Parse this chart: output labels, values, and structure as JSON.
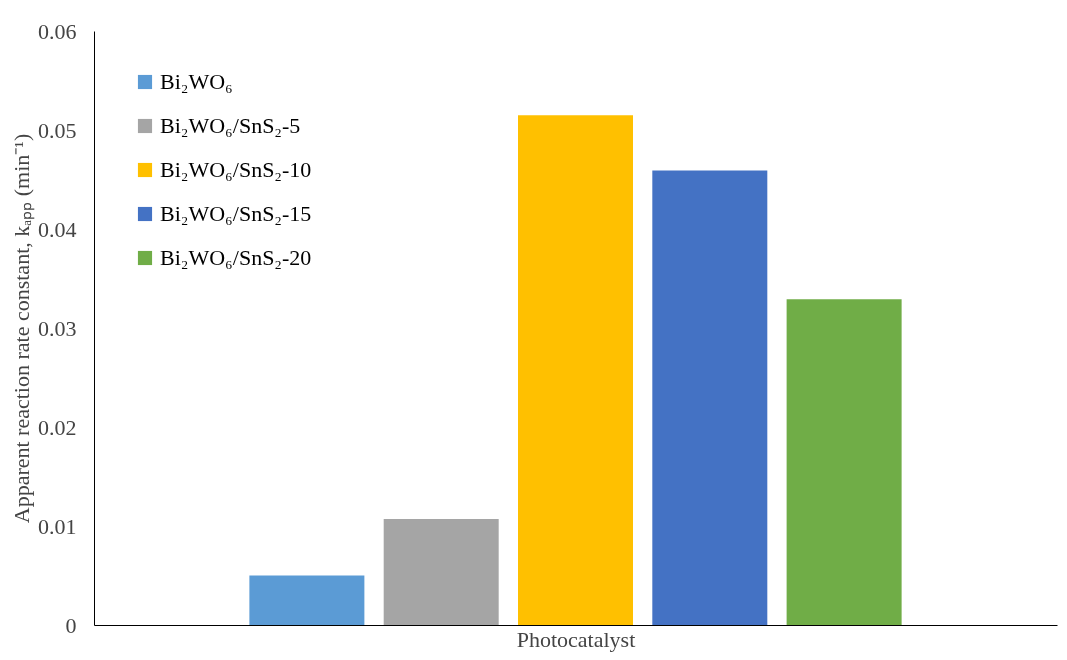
{
  "chart_data": {
    "type": "bar",
    "xlabel": "Photocatalyst",
    "ylabel": "Apparent reaction rate constant, kₐₚₚ (min⁻¹)",
    "categories": [
      null
    ],
    "series": [
      {
        "name": "Bi₂WO₆",
        "color": "#5b9bd5",
        "values": [
          0.005
        ]
      },
      {
        "name": "Bi₂WO₆/SnS₂-5",
        "color": "#a5a5a5",
        "values": [
          0.0107
        ]
      },
      {
        "name": "Bi₂WO₆/SnS₂-10",
        "color": "#ffc000",
        "values": [
          0.0515
        ]
      },
      {
        "name": "Bi₂WO₆/SnS₂-15",
        "color": "#4472c4",
        "values": [
          0.0459
        ]
      },
      {
        "name": "Bi₂WO₆/SnS₂-20",
        "color": "#70ad47",
        "values": [
          0.0329
        ]
      }
    ],
    "ylim": [
      0,
      0.06
    ],
    "yticks": [
      0,
      0.01,
      0.02,
      0.03,
      0.04,
      0.05,
      0.06
    ],
    "grid": false,
    "legend": "top left",
    "tick_labels": "y"
  }
}
